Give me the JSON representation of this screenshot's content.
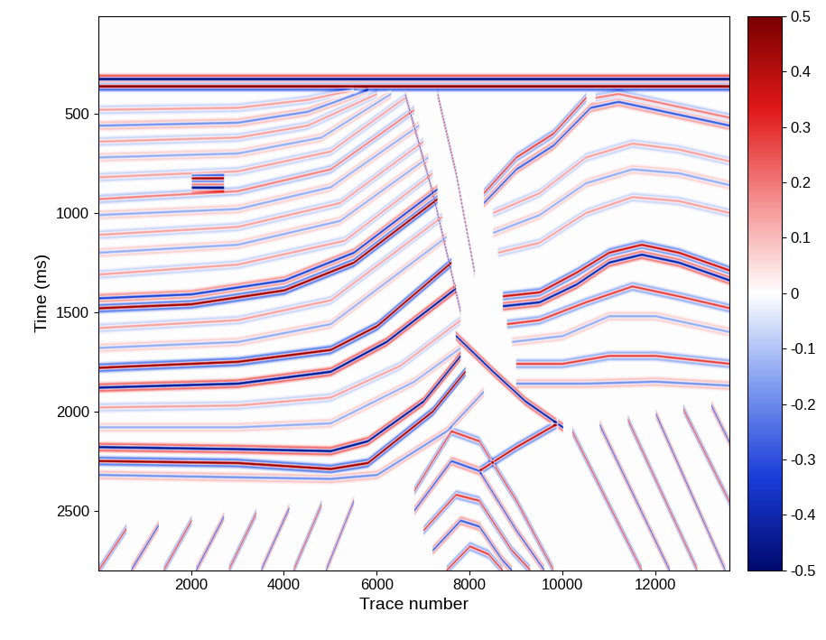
{
  "chart_data": {
    "type": "heatmap",
    "x_label": "Trace number",
    "y_label": "Time (ms)",
    "xlim": [
      0,
      13600
    ],
    "ylim": [
      2800,
      10
    ],
    "xticks": [
      2000,
      4000,
      6000,
      8000,
      10000,
      12000
    ],
    "yticks": [
      500,
      1000,
      1500,
      2000,
      2500
    ],
    "color_range": [
      -0.5,
      0.5
    ],
    "color_ticks": [
      -0.5,
      -0.4,
      -0.3,
      -0.2,
      -0.1,
      0,
      0.1,
      0.2,
      0.3,
      0.4,
      0.5
    ],
    "reflectors": [
      {
        "amplitude": -0.6,
        "points": [
          [
            0,
            325
          ],
          [
            13600,
            325
          ]
        ]
      },
      {
        "amplitude": 0.6,
        "points": [
          [
            0,
            362
          ],
          [
            13600,
            362
          ]
        ]
      },
      {
        "amplitude": 0.15,
        "points": [
          [
            0,
            480
          ],
          [
            3000,
            470
          ],
          [
            4500,
            430
          ],
          [
            5500,
            380
          ]
        ]
      },
      {
        "amplitude": -0.2,
        "points": [
          [
            0,
            560
          ],
          [
            3000,
            545
          ],
          [
            4500,
            490
          ],
          [
            5800,
            380
          ]
        ]
      },
      {
        "amplitude": 0.15,
        "points": [
          [
            0,
            640
          ],
          [
            3000,
            620
          ],
          [
            4500,
            560
          ],
          [
            6000,
            400
          ]
        ]
      },
      {
        "amplitude": -0.15,
        "points": [
          [
            0,
            720
          ],
          [
            3000,
            700
          ],
          [
            4800,
            620
          ],
          [
            6300,
            400
          ]
        ]
      },
      {
        "amplitude": 0.15,
        "points": [
          [
            0,
            820
          ],
          [
            3000,
            790
          ],
          [
            5000,
            690
          ],
          [
            6600,
            420
          ]
        ]
      },
      {
        "amplitude": 0.2,
        "points": [
          [
            0,
            930
          ],
          [
            3000,
            890
          ],
          [
            5000,
            780
          ],
          [
            6800,
            480
          ]
        ]
      },
      {
        "amplitude": -0.15,
        "points": [
          [
            0,
            1010
          ],
          [
            3000,
            980
          ],
          [
            5000,
            870
          ],
          [
            6900,
            560
          ]
        ]
      },
      {
        "amplitude": 0.15,
        "points": [
          [
            0,
            1110
          ],
          [
            3000,
            1070
          ],
          [
            5200,
            950
          ],
          [
            7000,
            640
          ]
        ]
      },
      {
        "amplitude": -0.15,
        "points": [
          [
            0,
            1200
          ],
          [
            3000,
            1160
          ],
          [
            5200,
            1040
          ],
          [
            7100,
            720
          ]
        ]
      },
      {
        "amplitude": 0.15,
        "points": [
          [
            0,
            1310
          ],
          [
            3000,
            1260
          ],
          [
            5300,
            1140
          ],
          [
            7200,
            800
          ]
        ]
      },
      {
        "amplitude": -0.35,
        "points": [
          [
            0,
            1430
          ],
          [
            2000,
            1410
          ],
          [
            4000,
            1340
          ],
          [
            5500,
            1200
          ],
          [
            7300,
            880
          ]
        ]
      },
      {
        "amplitude": 0.5,
        "points": [
          [
            0,
            1480
          ],
          [
            2000,
            1460
          ],
          [
            4000,
            1390
          ],
          [
            5500,
            1250
          ],
          [
            7300,
            930
          ]
        ]
      },
      {
        "amplitude": 0.15,
        "points": [
          [
            0,
            1580
          ],
          [
            3000,
            1540
          ],
          [
            5000,
            1440
          ],
          [
            7400,
            1020
          ]
        ]
      },
      {
        "amplitude": -0.15,
        "points": [
          [
            0,
            1680
          ],
          [
            3000,
            1650
          ],
          [
            5000,
            1560
          ],
          [
            7500,
            1120
          ]
        ]
      },
      {
        "amplitude": 0.5,
        "points": [
          [
            0,
            1780
          ],
          [
            3000,
            1750
          ],
          [
            5000,
            1690
          ],
          [
            6000,
            1570
          ],
          [
            7600,
            1250
          ]
        ]
      },
      {
        "amplitude": -0.5,
        "points": [
          [
            0,
            1880
          ],
          [
            3000,
            1860
          ],
          [
            5000,
            1800
          ],
          [
            6200,
            1650
          ],
          [
            7700,
            1380
          ]
        ]
      },
      {
        "amplitude": 0.15,
        "points": [
          [
            0,
            1980
          ],
          [
            3000,
            1970
          ],
          [
            5000,
            1930
          ],
          [
            6500,
            1770
          ],
          [
            7800,
            1540
          ]
        ]
      },
      {
        "amplitude": -0.15,
        "points": [
          [
            0,
            2080
          ],
          [
            3000,
            2080
          ],
          [
            5000,
            2060
          ],
          [
            6800,
            1850
          ],
          [
            7800,
            1680
          ]
        ]
      },
      {
        "amplitude": -0.5,
        "points": [
          [
            0,
            2180
          ],
          [
            3000,
            2190
          ],
          [
            5000,
            2200
          ],
          [
            5800,
            2150
          ],
          [
            7000,
            1950
          ],
          [
            7800,
            1720
          ]
        ]
      },
      {
        "amplitude": 0.5,
        "points": [
          [
            0,
            2250
          ],
          [
            3000,
            2260
          ],
          [
            5000,
            2290
          ],
          [
            5800,
            2260
          ],
          [
            7200,
            2000
          ],
          [
            7900,
            1800
          ]
        ]
      },
      {
        "amplitude": -0.2,
        "points": [
          [
            0,
            2320
          ],
          [
            5000,
            2340
          ],
          [
            6000,
            2320
          ],
          [
            7500,
            2100
          ],
          [
            8300,
            1900
          ]
        ]
      },
      {
        "amplitude": 0.5,
        "points": [
          [
            2000,
            825
          ],
          [
            2700,
            825
          ]
        ]
      },
      {
        "amplitude": -0.5,
        "points": [
          [
            2000,
            872
          ],
          [
            2700,
            872
          ]
        ]
      },
      {
        "amplitude": -0.3,
        "points": [
          [
            6600,
            400
          ],
          [
            7200,
            900
          ],
          [
            7800,
            1500
          ]
        ]
      },
      {
        "amplitude": 0.3,
        "points": [
          [
            7300,
            400
          ],
          [
            7700,
            800
          ],
          [
            8100,
            1300
          ]
        ]
      },
      {
        "amplitude": 0.3,
        "points": [
          [
            8300,
            900
          ],
          [
            9000,
            720
          ],
          [
            9800,
            600
          ],
          [
            10500,
            420
          ]
        ]
      },
      {
        "amplitude": -0.3,
        "points": [
          [
            8300,
            950
          ],
          [
            9000,
            780
          ],
          [
            9800,
            660
          ],
          [
            10600,
            470
          ],
          [
            11200,
            440
          ],
          [
            12000,
            480
          ],
          [
            13600,
            560
          ]
        ]
      },
      {
        "amplitude": 0.2,
        "points": [
          [
            10700,
            420
          ],
          [
            11200,
            400
          ],
          [
            12000,
            440
          ],
          [
            13600,
            520
          ]
        ]
      },
      {
        "amplitude": 0.15,
        "points": [
          [
            8500,
            1000
          ],
          [
            9500,
            900
          ],
          [
            10500,
            720
          ],
          [
            11500,
            650
          ],
          [
            12500,
            680
          ],
          [
            13600,
            740
          ]
        ]
      },
      {
        "amplitude": -0.15,
        "points": [
          [
            8500,
            1100
          ],
          [
            9500,
            1010
          ],
          [
            10500,
            850
          ],
          [
            11500,
            780
          ],
          [
            12500,
            800
          ],
          [
            13600,
            860
          ]
        ]
      },
      {
        "amplitude": 0.15,
        "points": [
          [
            8600,
            1200
          ],
          [
            9500,
            1150
          ],
          [
            10500,
            1000
          ],
          [
            11500,
            920
          ],
          [
            12500,
            940
          ],
          [
            13600,
            1000
          ]
        ]
      },
      {
        "amplitude": 0.4,
        "points": [
          [
            8700,
            1420
          ],
          [
            9500,
            1400
          ],
          [
            10300,
            1300
          ],
          [
            11000,
            1200
          ],
          [
            11700,
            1160
          ],
          [
            12500,
            1200
          ],
          [
            13600,
            1290
          ]
        ]
      },
      {
        "amplitude": -0.45,
        "points": [
          [
            8700,
            1470
          ],
          [
            9500,
            1450
          ],
          [
            10300,
            1360
          ],
          [
            11000,
            1250
          ],
          [
            11700,
            1210
          ],
          [
            12500,
            1250
          ],
          [
            13600,
            1340
          ]
        ]
      },
      {
        "amplitude": 0.3,
        "points": [
          [
            8800,
            1560
          ],
          [
            9500,
            1540
          ],
          [
            10500,
            1450
          ],
          [
            11500,
            1370
          ],
          [
            12500,
            1420
          ],
          [
            13600,
            1480
          ]
        ]
      },
      {
        "amplitude": -0.15,
        "points": [
          [
            8900,
            1650
          ],
          [
            10000,
            1620
          ],
          [
            11000,
            1520
          ],
          [
            12000,
            1520
          ],
          [
            13600,
            1600
          ]
        ]
      },
      {
        "amplitude": 0.3,
        "points": [
          [
            9000,
            1760
          ],
          [
            10000,
            1760
          ],
          [
            11000,
            1720
          ],
          [
            12000,
            1720
          ],
          [
            13600,
            1760
          ]
        ]
      },
      {
        "amplitude": -0.2,
        "points": [
          [
            9000,
            1860
          ],
          [
            10500,
            1860
          ],
          [
            12000,
            1850
          ],
          [
            13600,
            1870
          ]
        ]
      },
      {
        "amplitude": -0.45,
        "points": [
          [
            7700,
            1620
          ],
          [
            8500,
            1800
          ],
          [
            9200,
            1950
          ],
          [
            10000,
            2080
          ]
        ]
      },
      {
        "amplitude": 0.4,
        "points": [
          [
            8200,
            2300
          ],
          [
            9000,
            2180
          ],
          [
            9900,
            2060
          ]
        ]
      },
      {
        "amplitude": 0.3,
        "points": [
          [
            6800,
            2400
          ],
          [
            7600,
            2100
          ],
          [
            8200,
            2150
          ],
          [
            9000,
            2450
          ],
          [
            9800,
            2800
          ]
        ]
      },
      {
        "amplitude": -0.3,
        "points": [
          [
            6800,
            2500
          ],
          [
            7600,
            2250
          ],
          [
            8200,
            2300
          ],
          [
            9000,
            2600
          ],
          [
            9600,
            2800
          ]
        ]
      },
      {
        "amplitude": 0.3,
        "points": [
          [
            7000,
            2600
          ],
          [
            7700,
            2420
          ],
          [
            8200,
            2450
          ],
          [
            8900,
            2700
          ],
          [
            9300,
            2800
          ]
        ]
      },
      {
        "amplitude": -0.3,
        "points": [
          [
            7200,
            2700
          ],
          [
            7800,
            2550
          ],
          [
            8200,
            2580
          ],
          [
            8700,
            2750
          ],
          [
            8900,
            2800
          ]
        ]
      },
      {
        "amplitude": 0.3,
        "points": [
          [
            7500,
            2800
          ],
          [
            8000,
            2680
          ],
          [
            8400,
            2720
          ],
          [
            8700,
            2800
          ]
        ]
      },
      {
        "amplitude": 0.3,
        "points": [
          [
            0,
            2800
          ],
          [
            600,
            2590
          ]
        ]
      },
      {
        "amplitude": -0.3,
        "points": [
          [
            700,
            2800
          ],
          [
            1300,
            2570
          ]
        ]
      },
      {
        "amplitude": 0.3,
        "points": [
          [
            1400,
            2800
          ],
          [
            2000,
            2550
          ]
        ]
      },
      {
        "amplitude": -0.3,
        "points": [
          [
            2100,
            2800
          ],
          [
            2700,
            2530
          ]
        ]
      },
      {
        "amplitude": 0.3,
        "points": [
          [
            2800,
            2800
          ],
          [
            3400,
            2510
          ]
        ]
      },
      {
        "amplitude": -0.3,
        "points": [
          [
            3500,
            2800
          ],
          [
            4100,
            2490
          ]
        ]
      },
      {
        "amplitude": 0.3,
        "points": [
          [
            4200,
            2800
          ],
          [
            4800,
            2470
          ]
        ]
      },
      {
        "amplitude": -0.3,
        "points": [
          [
            4900,
            2800
          ],
          [
            5500,
            2450
          ]
        ]
      },
      {
        "amplitude": 0.3,
        "points": [
          [
            10200,
            2100
          ],
          [
            11700,
            2800
          ]
        ]
      },
      {
        "amplitude": -0.3,
        "points": [
          [
            10800,
            2070
          ],
          [
            12300,
            2800
          ]
        ]
      },
      {
        "amplitude": 0.3,
        "points": [
          [
            11400,
            2040
          ],
          [
            12900,
            2800
          ]
        ]
      },
      {
        "amplitude": -0.3,
        "points": [
          [
            12000,
            2010
          ],
          [
            13500,
            2800
          ]
        ]
      },
      {
        "amplitude": 0.3,
        "points": [
          [
            12600,
            1990
          ],
          [
            13600,
            2460
          ]
        ]
      },
      {
        "amplitude": -0.3,
        "points": [
          [
            13200,
            1970
          ],
          [
            13600,
            2160
          ]
        ]
      }
    ]
  }
}
